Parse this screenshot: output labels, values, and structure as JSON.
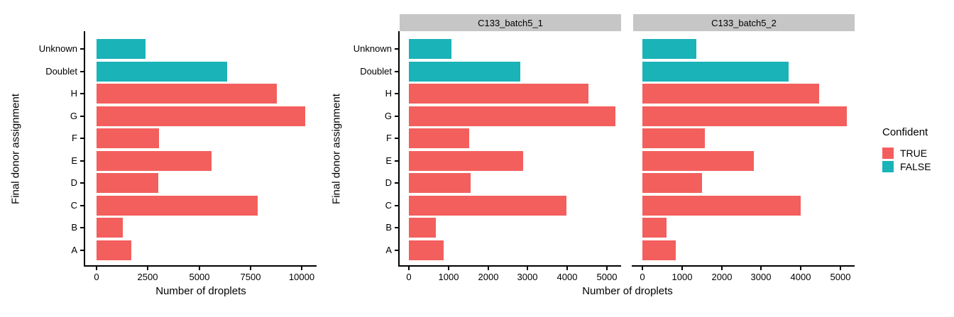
{
  "page": {
    "background": "#FFFFFF"
  },
  "chart_data": {
    "type": "bar",
    "orientation": "horizontal",
    "xlabel": "Number of droplets",
    "ylabel": "Final donor assignment",
    "categories": [
      "Unknown",
      "Doublet",
      "H",
      "G",
      "F",
      "E",
      "D",
      "C",
      "B",
      "A"
    ],
    "confident_by_category": [
      false,
      false,
      true,
      true,
      true,
      true,
      true,
      true,
      true,
      true
    ],
    "colors": {
      "confident_true": "#F35F5D",
      "confident_false": "#1AB3B8",
      "strip_background": "#C6C6C6",
      "axis": "#000000"
    },
    "series": [
      {
        "name": "",
        "values": [
          2390,
          6370,
          8800,
          10180,
          3050,
          5610,
          3010,
          7860,
          1280,
          1700
        ],
        "xticks": [
          0,
          2500,
          5000,
          7500,
          10000
        ],
        "xlim": [
          0,
          10800
        ]
      },
      {
        "name": "C133_batch5_1",
        "values": [
          1070,
          2810,
          4530,
          5210,
          1520,
          2880,
          1560,
          3980,
          680,
          880
        ],
        "xticks": [
          0,
          1000,
          2000,
          3000,
          4000,
          5000
        ],
        "xlim": [
          0,
          5400
        ]
      },
      {
        "name": "C133_batch5_2",
        "values": [
          1360,
          3690,
          4460,
          5160,
          1580,
          2810,
          1500,
          4000,
          610,
          840
        ],
        "xticks": [
          0,
          1000,
          2000,
          3000,
          4000,
          5000
        ],
        "xlim": [
          0,
          5400
        ]
      }
    ],
    "legend": {
      "title": "Confident",
      "position": "right",
      "entries": [
        {
          "label": "TRUE",
          "color": "#F35F5D"
        },
        {
          "label": "FALSE",
          "color": "#1AB3B8"
        }
      ]
    }
  }
}
